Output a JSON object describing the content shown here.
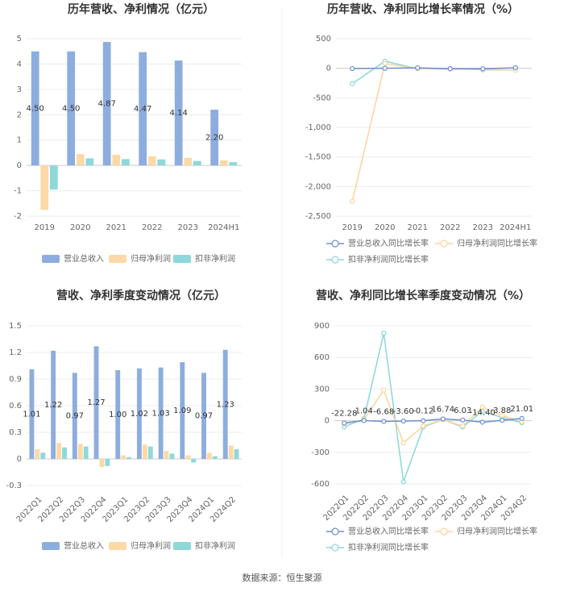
{
  "chart_data": [
    {
      "type": "bar",
      "title": "历年营收、净利情况（亿元）",
      "categories": [
        "2019",
        "2020",
        "2021",
        "2022",
        "2023",
        "2024H1"
      ],
      "series": [
        {
          "name": "营业总收入",
          "color": "#8eaddf",
          "values": [
            4.5,
            4.5,
            4.87,
            4.47,
            4.14,
            2.2
          ],
          "value_labels": [
            "4.50",
            "4.50",
            "4.87",
            "4.47",
            "4.14",
            "2.20"
          ]
        },
        {
          "name": "归母净利润",
          "color": "#fdd9a6",
          "values": [
            -1.75,
            0.45,
            0.42,
            0.36,
            0.3,
            0.2
          ]
        },
        {
          "name": "扣非净利润",
          "color": "#8ed8da",
          "values": [
            -0.95,
            0.28,
            0.25,
            0.24,
            0.18,
            0.13
          ]
        }
      ],
      "ylim": [
        -2,
        5
      ],
      "yticks": [
        -2,
        -1,
        0,
        1,
        2,
        3,
        4,
        5
      ],
      "grid": true
    },
    {
      "type": "line",
      "title": "历年营收、净利同比增长率情况（%）",
      "categories": [
        "2019",
        "2020",
        "2021",
        "2022",
        "2023",
        "2024H1"
      ],
      "series": [
        {
          "name": "营业总收入同比增长率",
          "color": "#6f8fd0",
          "values": [
            -5.25,
            0.09,
            8.15,
            -8.07,
            -7.38,
            8.64
          ]
        },
        {
          "name": "归母净利润同比增长率",
          "color": "#fcd49c",
          "values": [
            -2250,
            80,
            -6,
            -14,
            -16,
            -32
          ]
        },
        {
          "name": "扣非净利润同比增长率",
          "color": "#8ad8da",
          "values": [
            -260,
            120,
            -8,
            -5,
            -25,
            -28
          ]
        }
      ],
      "ylim": [
        -2500,
        500
      ],
      "yticks": [
        {
          "value": -2500,
          "label": "-2,500"
        },
        {
          "value": -2000,
          "label": "-2,000"
        },
        {
          "value": -1500,
          "label": "-1,500"
        },
        {
          "value": -1000,
          "label": "-1,000"
        },
        -500,
        0,
        500
      ],
      "grid": true
    },
    {
      "type": "bar",
      "title": "营收、净利季度变动情况（亿元）",
      "categories": [
        "2022Q1",
        "2022Q2",
        "2022Q3",
        "2022Q4",
        "2023Q1",
        "2023Q2",
        "2023Q3",
        "2023Q4",
        "2024Q1",
        "2024Q2"
      ],
      "series": [
        {
          "name": "营业总收入",
          "color": "#8eaddf",
          "values": [
            1.01,
            1.22,
            0.97,
            1.27,
            1.0,
            1.02,
            1.03,
            1.09,
            0.97,
            1.23
          ],
          "value_labels": [
            "1.01",
            "1.22",
            "0.97",
            "1.27",
            "1.00",
            "1.02",
            "1.03",
            "1.09",
            "0.97",
            "1.23"
          ]
        },
        {
          "name": "归母净利润",
          "color": "#fdd9a6",
          "values": [
            0.11,
            0.18,
            0.17,
            -0.09,
            0.04,
            0.16,
            0.09,
            0.04,
            0.07,
            0.15
          ]
        },
        {
          "name": "扣非净利润",
          "color": "#8ed8da",
          "values": [
            0.07,
            0.13,
            0.14,
            -0.08,
            0.02,
            0.14,
            0.06,
            -0.04,
            0.03,
            0.11
          ]
        }
      ],
      "ylim": [
        -0.3,
        1.5
      ],
      "yticks": [
        -0.3,
        0,
        0.3,
        0.6,
        0.9,
        1.2,
        1.5
      ],
      "grid": true
    },
    {
      "type": "line",
      "title": "营收、净利同比增长率季度变动情况（%）",
      "categories": [
        "2022Q1",
        "2022Q2",
        "2022Q3",
        "2022Q4",
        "2023Q1",
        "2023Q2",
        "2023Q3",
        "2023Q4",
        "2024Q1",
        "2024Q2"
      ],
      "series": [
        {
          "name": "营业总收入同比增长率",
          "color": "#6f8fd0",
          "values": [
            -22.28,
            1.04,
            -6.68,
            -3.6,
            -0.12,
            16.74,
            6.03,
            -14.4,
            3.88,
            21.01
          ],
          "value_labels": [
            "-22.28",
            "1.04",
            "-6.68",
            "-3.60",
            "-0.12",
            "16.74",
            "6.03",
            "-14.40",
            "3.88",
            "21.01"
          ]
        },
        {
          "name": "归母净利润同比增长率",
          "color": "#fcd49c",
          "values": [
            -30,
            10,
            290,
            -210,
            -50,
            10,
            -50,
            130,
            50,
            -10
          ]
        },
        {
          "name": "扣非净利润同比增长率",
          "color": "#8ad8da",
          "values": [
            -60,
            20,
            830,
            -580,
            -60,
            10,
            -60,
            90,
            30,
            -20
          ]
        }
      ],
      "ylim": [
        -600,
        900
      ],
      "yticks": [
        -600,
        -300,
        0,
        300,
        600,
        900
      ],
      "grid": true
    }
  ],
  "source": "数据来源：恒生聚源"
}
